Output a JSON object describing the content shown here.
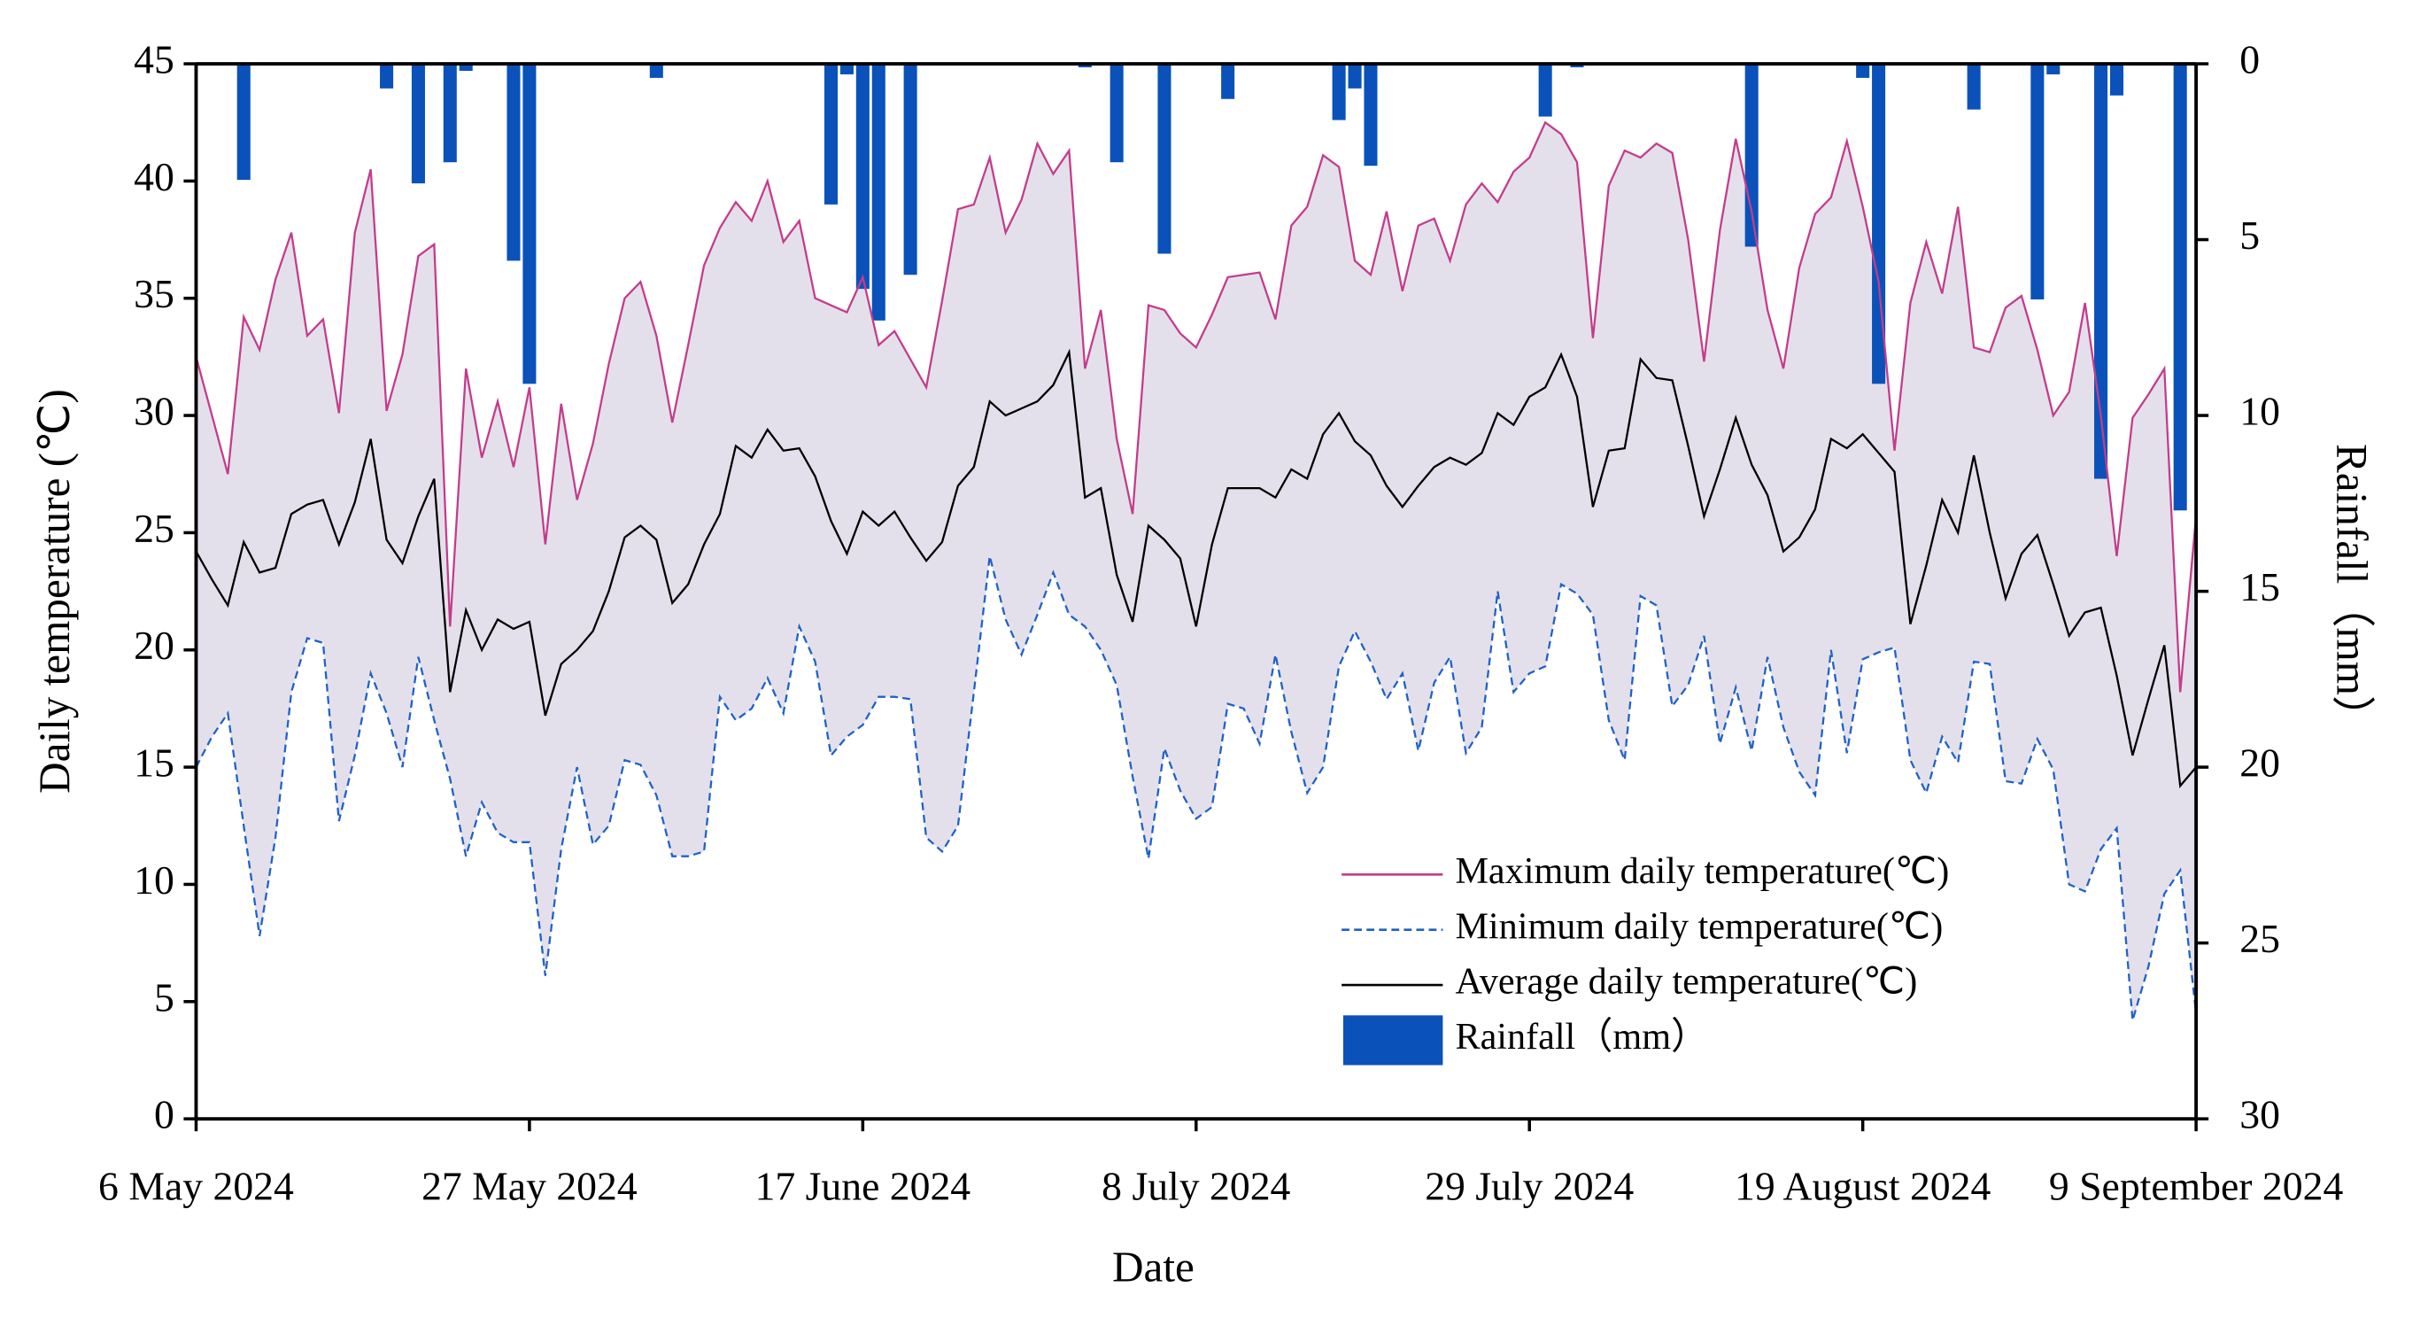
{
  "chart_data": {
    "type": "line",
    "x_label": "Date",
    "y_label": "Daily temperature (℃)",
    "y2_label": "Rainfall（mm）",
    "x": [
      "2024-05-06",
      "2024-05-07",
      "2024-05-08",
      "2024-05-09",
      "2024-05-10",
      "2024-05-11",
      "2024-05-12",
      "2024-05-13",
      "2024-05-14",
      "2024-05-15",
      "2024-05-16",
      "2024-05-17",
      "2024-05-18",
      "2024-05-19",
      "2024-05-20",
      "2024-05-21",
      "2024-05-22",
      "2024-05-23",
      "2024-05-24",
      "2024-05-25",
      "2024-05-26",
      "2024-05-27",
      "2024-05-28",
      "2024-05-29",
      "2024-05-30",
      "2024-05-31",
      "2024-06-01",
      "2024-06-02",
      "2024-06-03",
      "2024-06-04",
      "2024-06-05",
      "2024-06-06",
      "2024-06-07",
      "2024-06-08",
      "2024-06-09",
      "2024-06-10",
      "2024-06-11",
      "2024-06-12",
      "2024-06-13",
      "2024-06-14",
      "2024-06-15",
      "2024-06-16",
      "2024-06-17",
      "2024-06-18",
      "2024-06-19",
      "2024-06-20",
      "2024-06-21",
      "2024-06-22",
      "2024-06-23",
      "2024-06-24",
      "2024-06-25",
      "2024-06-26",
      "2024-06-27",
      "2024-06-28",
      "2024-06-29",
      "2024-06-30",
      "2024-07-01",
      "2024-07-02",
      "2024-07-03",
      "2024-07-04",
      "2024-07-05",
      "2024-07-06",
      "2024-07-07",
      "2024-07-08",
      "2024-07-09",
      "2024-07-10",
      "2024-07-11",
      "2024-07-12",
      "2024-07-13",
      "2024-07-14",
      "2024-07-15",
      "2024-07-16",
      "2024-07-17",
      "2024-07-18",
      "2024-07-19",
      "2024-07-20",
      "2024-07-21",
      "2024-07-22",
      "2024-07-23",
      "2024-07-24",
      "2024-07-25",
      "2024-07-26",
      "2024-07-27",
      "2024-07-28",
      "2024-07-29",
      "2024-07-30",
      "2024-07-31",
      "2024-08-01",
      "2024-08-02",
      "2024-08-03",
      "2024-08-04",
      "2024-08-05",
      "2024-08-06",
      "2024-08-07",
      "2024-08-08",
      "2024-08-09",
      "2024-08-10",
      "2024-08-11",
      "2024-08-12",
      "2024-08-13",
      "2024-08-14",
      "2024-08-15",
      "2024-08-16",
      "2024-08-17",
      "2024-08-18",
      "2024-08-19",
      "2024-08-20",
      "2024-08-21",
      "2024-08-22",
      "2024-08-23",
      "2024-08-24",
      "2024-08-25",
      "2024-08-26",
      "2024-08-27",
      "2024-08-28",
      "2024-08-29",
      "2024-08-30",
      "2024-08-31",
      "2024-09-01",
      "2024-09-02",
      "2024-09-03",
      "2024-09-04",
      "2024-09-05",
      "2024-09-06",
      "2024-09-07",
      "2024-09-08",
      "2024-09-09"
    ],
    "xlim": [
      "2024-05-06",
      "2024-09-09"
    ],
    "xticks": [
      {
        "value": "2024-05-06",
        "label": "6 May 2024"
      },
      {
        "value": "2024-05-27",
        "label": "27 May 2024"
      },
      {
        "value": "2024-06-17",
        "label": "17 June 2024"
      },
      {
        "value": "2024-07-08",
        "label": "8 July 2024"
      },
      {
        "value": "2024-07-29",
        "label": "29 July 2024"
      },
      {
        "value": "2024-08-19",
        "label": "19 August 2024"
      },
      {
        "value": "2024-09-09",
        "label": "9 September 2024"
      }
    ],
    "ylim": [
      0,
      45
    ],
    "yticks": [
      0,
      5,
      10,
      15,
      20,
      25,
      30,
      35,
      40,
      45
    ],
    "y2lim": [
      0,
      30
    ],
    "y2ticks": [
      0,
      5,
      10,
      15,
      20,
      25,
      30
    ],
    "y2_inverted": true,
    "fill_between": [
      0,
      1
    ],
    "fill_color": "#e4e0eb",
    "legend": "lower right",
    "series": [
      {
        "name": "Maximum daily temperature(℃)",
        "color": "#c43c8c",
        "dash": false,
        "values": [
          32.5,
          30.0,
          27.5,
          34.2,
          32.8,
          35.8,
          37.8,
          33.4,
          34.1,
          30.1,
          37.8,
          40.5,
          30.2,
          32.6,
          36.8,
          37.3,
          21.0,
          32.0,
          28.2,
          30.6,
          27.8,
          31.2,
          24.5,
          30.5,
          26.4,
          28.8,
          32.2,
          35.0,
          35.7,
          33.4,
          29.7,
          33.0,
          36.4,
          38.0,
          39.1,
          38.3,
          40.0,
          37.4,
          38.3,
          35.0,
          34.7,
          34.4,
          35.9,
          33.0,
          33.6,
          32.4,
          31.2,
          34.9,
          38.8,
          39.0,
          41.0,
          37.8,
          39.2,
          41.6,
          40.3,
          41.3,
          32.0,
          34.5,
          29.0,
          25.8,
          34.7,
          34.5,
          33.5,
          32.9,
          34.3,
          35.9,
          36.0,
          36.1,
          34.1,
          38.1,
          38.9,
          41.1,
          40.6,
          36.6,
          36.0,
          38.7,
          35.3,
          38.1,
          38.4,
          36.6,
          39.0,
          39.9,
          39.1,
          40.4,
          41.0,
          42.5,
          42.0,
          40.8,
          33.3,
          39.8,
          41.3,
          41.0,
          41.6,
          41.2,
          37.5,
          32.3,
          37.9,
          41.8,
          38.7,
          34.5,
          32.0,
          36.3,
          38.6,
          39.3,
          41.7,
          38.9,
          35.7,
          28.5,
          34.8,
          37.4,
          35.2,
          38.9,
          32.9,
          32.7,
          34.6,
          35.1,
          32.8,
          30.0,
          31.0,
          34.8,
          30.0,
          24.0,
          29.9,
          30.9,
          32.0,
          18.2,
          25.7
        ]
      },
      {
        "name": "Minimum daily temperature(℃)",
        "color": "#1f62c6",
        "dash": true,
        "values": [
          15.0,
          16.3,
          17.3,
          12.5,
          7.8,
          12.0,
          18.2,
          20.5,
          20.3,
          12.7,
          15.5,
          19.0,
          17.3,
          15.0,
          19.7,
          17.0,
          14.5,
          11.2,
          13.5,
          12.2,
          11.8,
          11.8,
          6.1,
          11.5,
          15.0,
          11.7,
          12.5,
          15.3,
          15.1,
          13.8,
          11.2,
          11.2,
          11.4,
          18.0,
          17.0,
          17.5,
          18.8,
          17.3,
          21.0,
          19.5,
          15.5,
          16.3,
          16.8,
          18.0,
          18.0,
          17.9,
          12.0,
          11.4,
          12.5,
          18.2,
          24.0,
          21.3,
          19.8,
          21.5,
          23.3,
          21.5,
          21.0,
          20.0,
          18.5,
          14.6,
          11.1,
          15.8,
          14.0,
          12.8,
          13.3,
          17.7,
          17.5,
          16.0,
          19.8,
          16.5,
          13.9,
          15.0,
          19.3,
          20.8,
          19.5,
          17.9,
          19.0,
          15.7,
          18.6,
          19.7,
          15.6,
          16.7,
          22.5,
          18.2,
          19.0,
          19.3,
          22.8,
          22.4,
          21.5,
          17.0,
          15.3,
          22.3,
          21.9,
          17.6,
          18.5,
          20.6,
          16.0,
          18.4,
          15.7,
          19.7,
          16.7,
          14.8,
          13.8,
          20.0,
          15.6,
          19.6,
          19.9,
          20.1,
          15.3,
          13.9,
          16.3,
          15.2,
          19.5,
          19.4,
          14.4,
          14.3,
          16.2,
          14.9,
          10.0,
          9.7,
          11.5,
          12.4,
          4.2,
          6.5,
          9.6,
          10.6,
          4.5
        ]
      },
      {
        "name": "Average daily temperature(℃)",
        "color": "#000000",
        "dash": false,
        "values": [
          24.2,
          23.0,
          21.9,
          24.6,
          23.3,
          23.5,
          25.8,
          26.2,
          26.4,
          24.5,
          26.3,
          29.0,
          24.7,
          23.7,
          25.7,
          27.3,
          18.2,
          21.7,
          20.0,
          21.3,
          20.9,
          21.2,
          17.2,
          19.4,
          20.0,
          20.8,
          22.5,
          24.8,
          25.3,
          24.7,
          22.0,
          22.8,
          24.5,
          25.8,
          28.7,
          28.2,
          29.4,
          28.5,
          28.6,
          27.4,
          25.5,
          24.1,
          25.9,
          25.3,
          25.9,
          24.8,
          23.8,
          24.6,
          27.0,
          27.8,
          30.6,
          30.0,
          30.3,
          30.6,
          31.3,
          32.7,
          26.5,
          26.9,
          23.2,
          21.2,
          25.3,
          24.7,
          23.9,
          21.0,
          24.5,
          26.9,
          26.9,
          26.9,
          26.5,
          27.7,
          27.3,
          29.2,
          30.1,
          28.9,
          28.3,
          27.0,
          26.1,
          27.0,
          27.8,
          28.2,
          27.9,
          28.4,
          30.1,
          29.6,
          30.8,
          31.2,
          32.6,
          30.8,
          26.1,
          28.5,
          28.6,
          32.4,
          31.6,
          31.5,
          28.7,
          25.7,
          27.7,
          29.9,
          27.9,
          26.6,
          24.2,
          24.8,
          26.0,
          29.0,
          28.6,
          29.2,
          28.4,
          27.6,
          21.1,
          23.6,
          26.4,
          25.0,
          28.3,
          25.0,
          22.2,
          24.1,
          24.9,
          22.8,
          20.6,
          21.6,
          21.8,
          18.9,
          15.5,
          17.9,
          20.2,
          14.2,
          15.0
        ]
      },
      {
        "name": "Rainfall（mm）",
        "color": "#0a52ba",
        "type": "bar",
        "axis": "y2",
        "values": [
          0,
          0,
          0,
          3.3,
          0,
          0,
          0,
          0,
          0,
          0,
          0,
          0,
          0.7,
          0,
          3.4,
          0,
          2.8,
          0.2,
          0,
          0,
          5.6,
          9.1,
          0,
          0,
          0,
          0,
          0,
          0,
          0,
          0.4,
          0,
          0,
          0,
          0,
          0,
          0,
          0,
          0,
          0,
          0,
          4.0,
          0.3,
          6.4,
          7.3,
          0,
          6.0,
          0,
          0,
          0,
          0,
          0,
          0,
          0,
          0,
          0,
          0,
          0.1,
          0,
          2.8,
          0,
          0,
          5.4,
          0,
          0,
          0,
          1.0,
          0,
          0,
          0,
          0,
          0,
          0,
          1.6,
          0.7,
          2.9,
          0,
          0,
          0,
          0,
          0,
          0,
          0,
          0,
          0,
          0,
          1.5,
          0,
          0.1,
          0,
          0,
          0,
          0,
          0,
          0,
          0,
          0,
          0,
          0,
          5.2,
          0,
          0,
          0,
          0,
          0,
          0,
          0.4,
          9.1,
          0,
          0,
          0,
          0,
          0,
          1.3,
          0,
          0,
          0,
          6.7,
          0.3,
          0,
          0,
          11.8,
          0.9,
          0,
          0,
          0,
          12.7,
          0
        ]
      }
    ]
  }
}
